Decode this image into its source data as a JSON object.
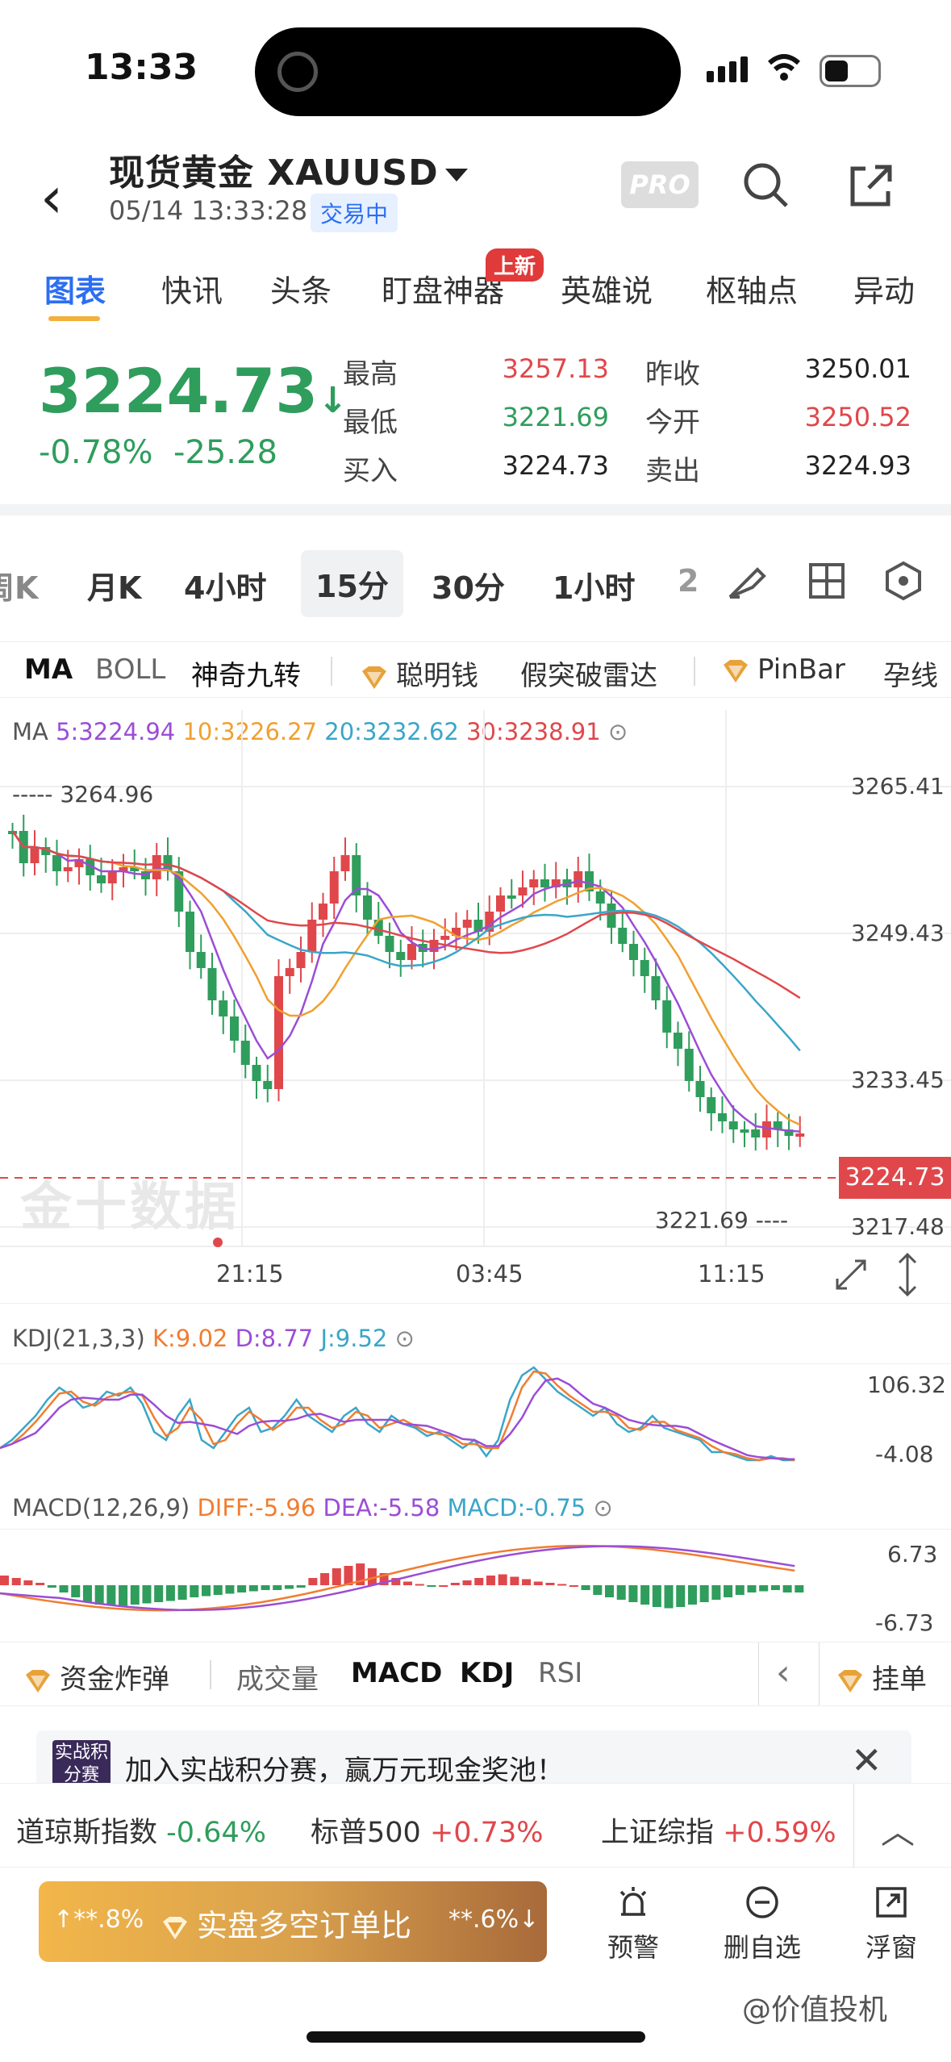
{
  "status": {
    "time": "13:33"
  },
  "header": {
    "title": "现货黄金",
    "symbol": "XAUUSD",
    "datetime": "05/14 13:33:28",
    "state": "交易中",
    "pro": "PRO"
  },
  "tabs": [
    "图表",
    "快讯",
    "头条",
    "盯盘神器",
    "英雄说",
    "枢轴点",
    "异动"
  ],
  "new_badge": "上新",
  "quote": {
    "price": "3224.73",
    "arrow": "↓",
    "pct": "-0.78%",
    "chg": "-25.28",
    "high_label": "最高",
    "high": "3257.13",
    "low_label": "最低",
    "low": "3221.69",
    "buy_label": "买入",
    "buy": "3224.73",
    "prev_label": "昨收",
    "prev": "3250.01",
    "open_label": "今开",
    "open": "3250.52",
    "sell_label": "卖出",
    "sell": "3224.93"
  },
  "periods": [
    "周K",
    "月K",
    "4小时",
    "15分",
    "30分",
    "1小时",
    "2"
  ],
  "indicators": {
    "ma": "MA",
    "boll": "BOLL",
    "nine": "神奇九转",
    "smart": "聪明钱",
    "radar": "假突破雷达",
    "pinbar": "PinBar",
    "preg": "孕线"
  },
  "ma_legend": {
    "label": "MA",
    "ma5": "5:3224.94",
    "ma10": "10:3226.27",
    "ma20": "20:3232.62",
    "ma30": "30:3238.91"
  },
  "axis": {
    "y1": "3265.41",
    "y2": "3249.43",
    "y3": "3233.45",
    "y4": "3217.48",
    "current": "3224.73",
    "hi_mark": "3264.96",
    "lo_mark": "3221.69",
    "t1": "21:15",
    "t2": "03:45",
    "t3": "11:15"
  },
  "kdj": {
    "label": "KDJ(21,3,3)",
    "k": "K:9.02",
    "d": "D:8.77",
    "j": "J:9.52",
    "top": "106.32",
    "bot": "-4.08"
  },
  "macd": {
    "label": "MACD(12,26,9)",
    "diff": "DIFF:-5.96",
    "dea": "DEA:-5.58",
    "macd": "MACD:-0.75",
    "top": "6.73",
    "bot": "-6.73"
  },
  "watermark_text": "金十数据",
  "bottom_indicators": {
    "bomb": "资金炸弹",
    "vol": "成交量",
    "macd": "MACD",
    "kdj": "KDJ",
    "rsi": "RSI",
    "order": "挂单"
  },
  "promo": {
    "badge": "实战积分赛",
    "text": "加入实战积分赛，赢万元现金奖池！"
  },
  "indices": [
    {
      "name": "道琼斯指数",
      "chg": "-0.64%",
      "color": "#2f9d5c"
    },
    {
      "name": "标普500",
      "chg": "+0.73%",
      "color": "#e0474b"
    },
    {
      "name": "上证综指",
      "chg": "+0.59%",
      "color": "#e0474b"
    }
  ],
  "ratio": {
    "left": "↑**.8%",
    "label": "实盘多空订单比",
    "right": "**.6%↓"
  },
  "actions": [
    "预警",
    "删自选",
    "浮窗"
  ],
  "footer_wm": "@价值投机",
  "colors": {
    "up": "#e0474b",
    "down": "#2f9d5c",
    "accent": "#2c6ef2"
  }
}
